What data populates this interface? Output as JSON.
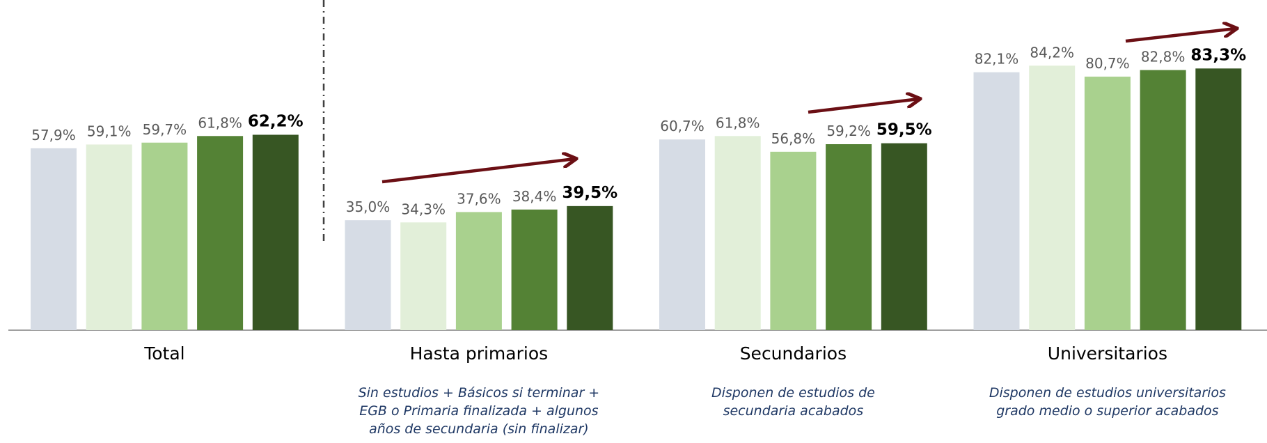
{
  "chart_data": {
    "type": "bar",
    "categories": [
      "Total",
      "Hasta primarios",
      "Secundarios",
      "Universitarios"
    ],
    "category_notes": [
      null,
      [
        "Sin estudios + Básicos si terminar +",
        "EGB o Primaria finalizada + algunos",
        "años de secundaria (sin finalizar)"
      ],
      [
        "Disponen de estudios de",
        "secundaria acabados"
      ],
      [
        "Disponen de estudios universitarios",
        "grado medio o superior acabados"
      ]
    ],
    "series": [
      {
        "color": "#d6dce5",
        "values": [
          57.9,
          35.0,
          60.7,
          82.1
        ],
        "value_labels": [
          "57,9%",
          "35,0%",
          "60,7%",
          "82,1%"
        ]
      },
      {
        "color": "#e2efd9",
        "values": [
          59.1,
          34.3,
          61.8,
          84.2
        ],
        "value_labels": [
          "59,1%",
          "34,3%",
          "61,8%",
          "84,2%"
        ]
      },
      {
        "color": "#a9d18e",
        "values": [
          59.7,
          37.6,
          56.8,
          80.7
        ],
        "value_labels": [
          "59,7%",
          "37,6%",
          "56,8%",
          "80,7%"
        ]
      },
      {
        "color": "#548235",
        "values": [
          61.8,
          38.4,
          59.2,
          82.8
        ],
        "value_labels": [
          "61,8%",
          "38,4%",
          "59,2%",
          "82,8%"
        ]
      },
      {
        "color": "#375623",
        "values": [
          62.2,
          39.5,
          59.5,
          83.3
        ],
        "value_labels": [
          "62,2%",
          "39,5%",
          "59,5%",
          "83,3%"
        ],
        "highlight": true
      }
    ],
    "ylim": [
      0,
      100
    ]
  }
}
